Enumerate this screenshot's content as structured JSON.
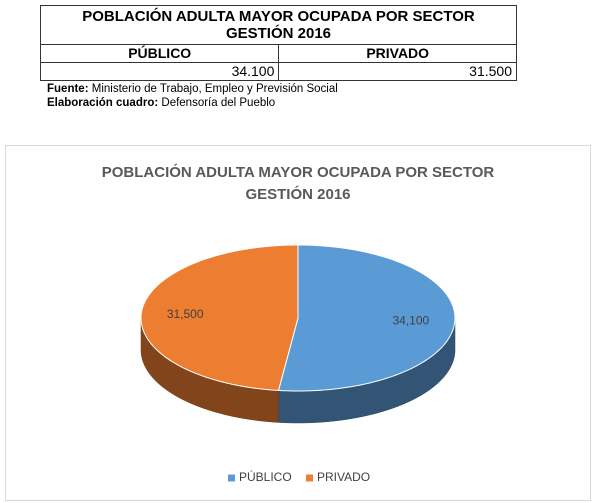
{
  "table": {
    "title": "POBLACIÓN ADULTA MAYOR OCUPADA POR SECTOR GESTIÓN 2016",
    "header": [
      "PÚBLICO",
      "PRIVADO"
    ],
    "row": [
      "34.100",
      "31.500"
    ]
  },
  "notes": [
    {
      "label": "Fuente:",
      "text": "Ministerio de Trabajo, Empleo y Previsión Social"
    },
    {
      "label": "Elaboración cuadro:",
      "text": "Defensoría del Pueblo"
    }
  ],
  "chart_data": {
    "type": "pie",
    "title": "POBLACIÓN ADULTA MAYOR OCUPADA POR SECTOR GESTIÓN 2016",
    "categories": [
      "PÚBLICO",
      "PRIVADO"
    ],
    "values": [
      34100,
      31500
    ],
    "value_labels": [
      "34,100",
      "31,500"
    ],
    "colors": [
      "#5b9bd5",
      "#ed7d31"
    ],
    "legend": "bottom",
    "three_d": true
  }
}
